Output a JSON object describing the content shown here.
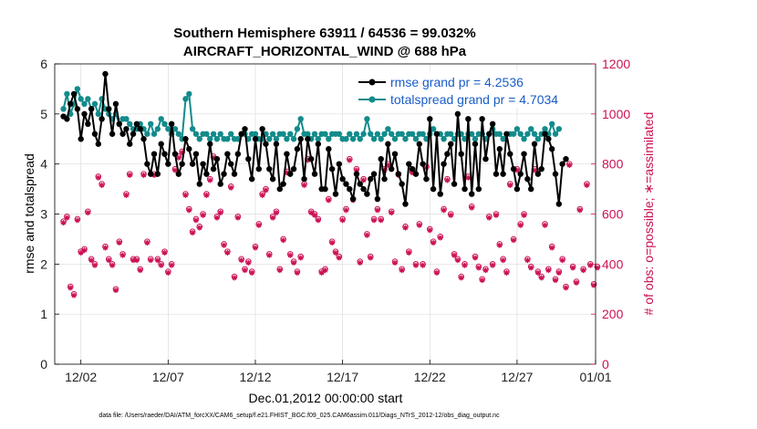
{
  "chart_data": {
    "type": "line",
    "title": "Southern Hemisphere 63911 / 64536 = 99.032%",
    "subtitle": "AIRCRAFT_HORIZONTAL_WIND @ 688 hPa",
    "xlabel": "Dec.01,2012 00:00:00 start",
    "ylabel_left": "rmse and totalspread",
    "ylabel_right": "# of obs: o=possible; ∗=assimilated",
    "ylim_left": [
      0,
      6
    ],
    "ylim_right": [
      0,
      1200
    ],
    "yticks_left": [
      "0",
      "1",
      "2",
      "3",
      "4",
      "5",
      "6"
    ],
    "yticks_right": [
      "0",
      "200",
      "400",
      "600",
      "800",
      "1000",
      "1200"
    ],
    "xlim_days": [
      0.5,
      31.5
    ],
    "xticks": [
      {
        "day": 2,
        "label": "12/02"
      },
      {
        "day": 7,
        "label": "12/07"
      },
      {
        "day": 12,
        "label": "12/12"
      },
      {
        "day": 17,
        "label": "12/17"
      },
      {
        "day": 22,
        "label": "12/22"
      },
      {
        "day": 27,
        "label": "12/27"
      },
      {
        "day": 32,
        "label": "01/01"
      }
    ],
    "grid": true,
    "legend_position": "top-right",
    "colors": {
      "rmse": "#000000",
      "totalspread": "#138b8b",
      "obs": "#cc1155",
      "legend_text": "#1a5cc8"
    },
    "series": [
      {
        "name": "rmse grand pr = 4.2536",
        "axis": "left",
        "values": [
          4.95,
          4.9,
          5.2,
          5.4,
          5.1,
          4.5,
          5.0,
          4.8,
          5.1,
          4.6,
          4.4,
          4.9,
          5.8,
          5.1,
          4.6,
          5.2,
          4.8,
          4.6,
          4.7,
          4.4,
          4.6,
          4.8,
          4.7,
          4.5,
          4.0,
          3.8,
          4.2,
          3.8,
          4.4,
          4.2,
          4.0,
          4.8,
          4.2,
          3.8,
          4.0,
          4.5,
          4.3,
          4.0,
          4.2,
          3.6,
          4.0,
          3.8,
          4.4,
          3.9,
          4.1,
          3.6,
          3.8,
          4.2,
          4.0,
          3.8,
          4.2,
          4.6,
          4.7,
          4.1,
          3.7,
          4.5,
          3.9,
          4.7,
          4.4,
          3.9,
          3.7,
          4.4,
          3.5,
          3.6,
          4.2,
          3.8,
          3.9,
          4.3,
          4.5,
          3.7,
          4.5,
          4.1,
          3.8,
          4.4,
          3.5,
          3.5,
          4.3,
          3.9,
          3.4,
          4.0,
          3.7,
          3.6,
          3.5,
          3.3,
          3.8,
          3.6,
          3.5,
          3.4,
          3.7,
          3.8,
          3.3,
          4.1,
          3.7,
          4.4,
          3.9,
          4.2,
          3.8,
          3.6,
          3.2,
          4.0,
          3.9,
          3.8,
          4.4,
          4.0,
          3.7,
          4.9,
          3.5,
          4.6,
          3.4,
          4.0,
          4.2,
          4.4,
          3.6,
          5.0,
          4.2,
          3.5,
          4.9,
          3.4,
          4.4,
          3.5,
          4.9,
          4.1,
          4.6,
          4.8,
          3.8,
          4.3,
          3.8,
          4.6,
          4.2,
          3.9,
          3.5,
          3.8,
          4.2,
          3.7,
          3.5,
          4.4,
          3.8,
          3.9,
          4.6,
          4.5,
          4.3,
          3.8,
          3.2,
          4.0,
          4.1
        ]
      },
      {
        "name": "totalspread grand pr = 4.7034",
        "axis": "left",
        "values": [
          5.1,
          5.4,
          5.0,
          5.2,
          5.5,
          5.3,
          5.2,
          5.3,
          5.1,
          5.2,
          5.0,
          5.3,
          5.1,
          5.0,
          4.9,
          5.0,
          4.8,
          4.9,
          4.9,
          4.8,
          4.7,
          4.7,
          4.8,
          4.7,
          4.6,
          4.8,
          4.6,
          4.7,
          4.9,
          4.8,
          4.7,
          4.6,
          4.7,
          4.6,
          4.5,
          5.3,
          5.4,
          4.7,
          4.6,
          4.5,
          4.6,
          4.6,
          4.5,
          4.6,
          4.5,
          4.6,
          4.5,
          4.5,
          4.6,
          4.5,
          4.5,
          4.6,
          4.6,
          4.5,
          4.6,
          4.6,
          4.5,
          4.5,
          4.6,
          4.5,
          4.6,
          4.5,
          4.6,
          4.6,
          4.5,
          4.6,
          4.5,
          4.7,
          4.9,
          4.6,
          4.6,
          4.5,
          4.6,
          4.5,
          4.6,
          4.6,
          4.5,
          4.6,
          4.6,
          4.6,
          4.5,
          4.5,
          4.6,
          4.5,
          4.6,
          4.5,
          4.6,
          4.9,
          4.6,
          4.5,
          4.6,
          4.5,
          4.6,
          4.7,
          4.6,
          4.5,
          4.6,
          4.6,
          4.5,
          4.6,
          4.6,
          4.5,
          4.6,
          4.6,
          4.5,
          4.6,
          4.7,
          4.6,
          4.6,
          4.5,
          4.6,
          4.6,
          4.5,
          4.6,
          4.6,
          4.5,
          4.6,
          4.6,
          4.5,
          4.6,
          4.6,
          4.5,
          4.6,
          4.7,
          4.6,
          4.6,
          4.5,
          4.6,
          4.6,
          4.6,
          4.7,
          4.6,
          4.5,
          4.6,
          4.7,
          4.6,
          4.5,
          4.6,
          4.7,
          4.6,
          4.8,
          4.6,
          4.7
        ]
      },
      {
        "name": "# of obs (possible)",
        "axis": "right",
        "marker": "o",
        "values": [
          570,
          590,
          310,
          280,
          580,
          450,
          460,
          610,
          420,
          400,
          750,
          720,
          470,
          420,
          400,
          300,
          490,
          440,
          680,
          760,
          420,
          420,
          380,
          760,
          490,
          420,
          760,
          420,
          400,
          450,
          370,
          400,
          780,
          830,
          850,
          680,
          620,
          530,
          580,
          550,
          600,
          680,
          740,
          830,
          590,
          610,
          480,
          450,
          710,
          350,
          590,
          420,
          380,
          410,
          370,
          470,
          560,
          680,
          700,
          440,
          590,
          610,
          380,
          500,
          770,
          440,
          410,
          370,
          430,
          720,
          820,
          610,
          600,
          580,
          370,
          380,
          660,
          490,
          450,
          430,
          580,
          620,
          820,
          660,
          780,
          410,
          740,
          520,
          430,
          580,
          620,
          580,
          780,
          800,
          610,
          410,
          760,
          380,
          550,
          450,
          770,
          400,
          560,
          400,
          790,
          540,
          490,
          370,
          510,
          620,
          740,
          600,
          440,
          420,
          350,
          400,
          750,
          630,
          430,
          390,
          340,
          380,
          590,
          400,
          600,
          480,
          420,
          370,
          720,
          500,
          780,
          560,
          600,
          420,
          390,
          780,
          370,
          350,
          560,
          380,
          470,
          340,
          370,
          420,
          310,
          800,
          390,
          330,
          620,
          380,
          720,
          400,
          320,
          390
        ]
      },
      {
        "name": "# of obs (assimilated)",
        "axis": "right",
        "marker": "*",
        "values": [
          565,
          585,
          305,
          275,
          575,
          445,
          455,
          605,
          415,
          395,
          745,
          715,
          465,
          415,
          395,
          295,
          485,
          435,
          675,
          755,
          415,
          415,
          375,
          755,
          485,
          415,
          755,
          415,
          395,
          445,
          365,
          395,
          775,
          825,
          845,
          675,
          615,
          525,
          575,
          545,
          595,
          675,
          735,
          825,
          585,
          605,
          475,
          445,
          705,
          345,
          585,
          415,
          375,
          405,
          365,
          465,
          555,
          675,
          695,
          435,
          585,
          605,
          375,
          495,
          765,
          435,
          405,
          365,
          425,
          715,
          815,
          605,
          595,
          575,
          365,
          375,
          655,
          485,
          445,
          425,
          575,
          615,
          815,
          655,
          775,
          405,
          735,
          515,
          425,
          575,
          615,
          575,
          775,
          795,
          605,
          405,
          755,
          375,
          545,
          445,
          765,
          395,
          555,
          395,
          785,
          535,
          485,
          365,
          505,
          615,
          735,
          595,
          435,
          415,
          345,
          395,
          745,
          625,
          425,
          385,
          335,
          375,
          585,
          395,
          595,
          475,
          415,
          365,
          715,
          495,
          775,
          555,
          595,
          415,
          385,
          775,
          365,
          345,
          555,
          375,
          465,
          335,
          365,
          415,
          305,
          795,
          385,
          325,
          615,
          375,
          715,
          395,
          315,
          385
        ]
      }
    ]
  },
  "footnote": "data file: /Users/raeder/DAI/ATM_forcXX/CAM6_setup/f.e21.FHIST_BGC.f09_025.CAM6assim.011/Diags_NTrS_2012-12/obs_diag_output.nc"
}
